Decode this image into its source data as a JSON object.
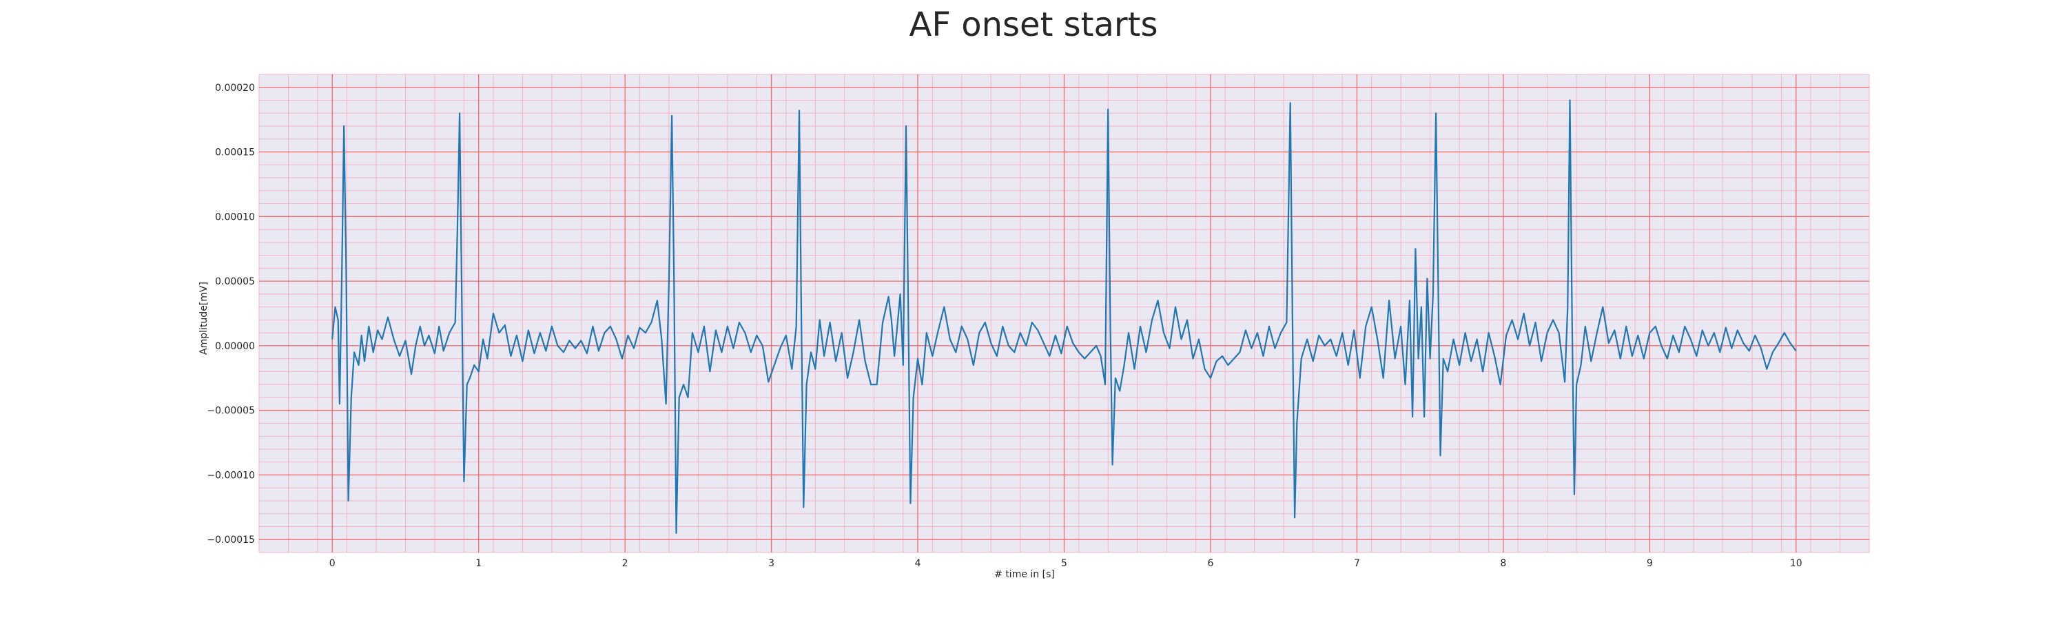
{
  "chart_data": {
    "type": "line",
    "title": "AF onset starts",
    "xlabel": "# time in [s]",
    "ylabel": "Amplitude[mV]",
    "xlim": [
      -0.5,
      10.5
    ],
    "ylim": [
      -0.00016,
      0.00021
    ],
    "x_ticks": [
      0,
      1,
      2,
      3,
      4,
      5,
      6,
      7,
      8,
      9,
      10
    ],
    "x_tick_labels": [
      "0",
      "1",
      "2",
      "3",
      "4",
      "5",
      "6",
      "7",
      "8",
      "9",
      "10"
    ],
    "y_ticks": [
      -0.00015,
      -0.0001,
      -5e-05,
      0,
      5e-05,
      0.0001,
      0.00015,
      0.0002
    ],
    "y_tick_labels": [
      "−0.00015",
      "−0.00010",
      "−0.00005",
      "0.00000",
      "0.00005",
      "0.00010",
      "0.00015",
      "0.00020"
    ],
    "grid": true,
    "minor_grid": true,
    "colors": {
      "line": "#1f77b4",
      "major_grid": "#f26b6b",
      "minor_grid": "#f4b5c4",
      "plot_bg": "#eae8f2"
    },
    "series": [
      {
        "values": [
          [
            0.0,
            5e-06
          ],
          [
            0.02,
            3e-05
          ],
          [
            0.04,
            2e-05
          ],
          [
            0.05,
            -4.5e-05
          ],
          [
            0.065,
            5e-05
          ],
          [
            0.08,
            0.00017
          ],
          [
            0.095,
            6e-05
          ],
          [
            0.11,
            -0.00012
          ],
          [
            0.13,
            -4e-05
          ],
          [
            0.15,
            -5e-06
          ],
          [
            0.18,
            -1.5e-05
          ],
          [
            0.2,
            8e-06
          ],
          [
            0.22,
            -1.2e-05
          ],
          [
            0.25,
            1.5e-05
          ],
          [
            0.28,
            -5e-06
          ],
          [
            0.31,
            1.2e-05
          ],
          [
            0.34,
            5e-06
          ],
          [
            0.38,
            2.2e-05
          ],
          [
            0.42,
            5e-06
          ],
          [
            0.46,
            -8e-06
          ],
          [
            0.5,
            4e-06
          ],
          [
            0.54,
            -2.2e-05
          ],
          [
            0.57,
            0.0
          ],
          [
            0.6,
            1.5e-05
          ],
          [
            0.63,
            0.0
          ],
          [
            0.66,
            8e-06
          ],
          [
            0.7,
            -6e-06
          ],
          [
            0.73,
            1.5e-05
          ],
          [
            0.76,
            -4e-06
          ],
          [
            0.8,
            1e-05
          ],
          [
            0.84,
            1.8e-05
          ],
          [
            0.855,
            9e-05
          ],
          [
            0.87,
            0.00018
          ],
          [
            0.885,
            4e-05
          ],
          [
            0.9,
            -0.000105
          ],
          [
            0.92,
            -3e-05
          ],
          [
            0.94,
            -2.5e-05
          ],
          [
            0.97,
            -1.5e-05
          ],
          [
            1.0,
            -2e-05
          ],
          [
            1.03,
            5e-06
          ],
          [
            1.06,
            -1e-05
          ],
          [
            1.1,
            2.5e-05
          ],
          [
            1.14,
            1e-05
          ],
          [
            1.18,
            1.6e-05
          ],
          [
            1.22,
            -8e-06
          ],
          [
            1.26,
            8e-06
          ],
          [
            1.3,
            -1.2e-05
          ],
          [
            1.34,
            1.2e-05
          ],
          [
            1.38,
            -6e-06
          ],
          [
            1.42,
            1e-05
          ],
          [
            1.46,
            -4e-06
          ],
          [
            1.5,
            1.5e-05
          ],
          [
            1.54,
            0.0
          ],
          [
            1.58,
            -5e-06
          ],
          [
            1.62,
            4e-06
          ],
          [
            1.66,
            -2e-06
          ],
          [
            1.7,
            4e-06
          ],
          [
            1.74,
            -6e-06
          ],
          [
            1.78,
            1.5e-05
          ],
          [
            1.82,
            -4e-06
          ],
          [
            1.86,
            1e-05
          ],
          [
            1.9,
            1.5e-05
          ],
          [
            1.94,
            5e-06
          ],
          [
            1.98,
            -1e-05
          ],
          [
            2.02,
            8e-06
          ],
          [
            2.06,
            -2e-06
          ],
          [
            2.1,
            1.4e-05
          ],
          [
            2.14,
            1e-05
          ],
          [
            2.18,
            1.8e-05
          ],
          [
            2.22,
            3.5e-05
          ],
          [
            2.25,
            5e-06
          ],
          [
            2.28,
            -4.5e-05
          ],
          [
            2.3,
            5e-05
          ],
          [
            2.32,
            0.000178
          ],
          [
            2.335,
            5e-05
          ],
          [
            2.35,
            -0.000145
          ],
          [
            2.37,
            -4e-05
          ],
          [
            2.4,
            -3e-05
          ],
          [
            2.43,
            -4e-05
          ],
          [
            2.46,
            1e-05
          ],
          [
            2.5,
            -5e-06
          ],
          [
            2.54,
            1.5e-05
          ],
          [
            2.58,
            -2e-05
          ],
          [
            2.62,
            1.2e-05
          ],
          [
            2.66,
            -5e-06
          ],
          [
            2.7,
            1.5e-05
          ],
          [
            2.74,
            -2e-06
          ],
          [
            2.78,
            1.8e-05
          ],
          [
            2.82,
            1e-05
          ],
          [
            2.86,
            -5e-06
          ],
          [
            2.9,
            8e-06
          ],
          [
            2.94,
            0.0
          ],
          [
            2.98,
            -2.8e-05
          ],
          [
            3.02,
            -1.5e-05
          ],
          [
            3.06,
            -2e-06
          ],
          [
            3.1,
            8e-06
          ],
          [
            3.14,
            -1.8e-05
          ],
          [
            3.17,
            1.5e-05
          ],
          [
            3.19,
            0.000182
          ],
          [
            3.205,
            2e-05
          ],
          [
            3.22,
            -0.000125
          ],
          [
            3.24,
            -3e-05
          ],
          [
            3.27,
            -5e-06
          ],
          [
            3.3,
            -1.8e-05
          ],
          [
            3.33,
            2e-05
          ],
          [
            3.36,
            -8e-06
          ],
          [
            3.4,
            1.8e-05
          ],
          [
            3.44,
            -1.2e-05
          ],
          [
            3.48,
            1e-05
          ],
          [
            3.52,
            -2.5e-05
          ],
          [
            3.56,
            -5e-06
          ],
          [
            3.6,
            2e-05
          ],
          [
            3.64,
            -1.2e-05
          ],
          [
            3.68,
            -3e-05
          ],
          [
            3.72,
            -3e-05
          ],
          [
            3.76,
            1.8e-05
          ],
          [
            3.8,
            3.8e-05
          ],
          [
            3.82,
            2e-05
          ],
          [
            3.84,
            -8e-06
          ],
          [
            3.86,
            1.5e-05
          ],
          [
            3.88,
            4e-05
          ],
          [
            3.9,
            -1.5e-05
          ],
          [
            3.92,
            0.00017
          ],
          [
            3.935,
            3e-05
          ],
          [
            3.95,
            -0.000122
          ],
          [
            3.97,
            -4e-05
          ],
          [
            4.0,
            -1e-05
          ],
          [
            4.03,
            -3e-05
          ],
          [
            4.06,
            1e-05
          ],
          [
            4.1,
            -8e-06
          ],
          [
            4.14,
            1.2e-05
          ],
          [
            4.18,
            3e-05
          ],
          [
            4.22,
            5e-06
          ],
          [
            4.26,
            -5e-06
          ],
          [
            4.3,
            1.5e-05
          ],
          [
            4.34,
            5e-06
          ],
          [
            4.38,
            -1.5e-05
          ],
          [
            4.42,
            1e-05
          ],
          [
            4.46,
            1.8e-05
          ],
          [
            4.5,
            2e-06
          ],
          [
            4.54,
            -8e-06
          ],
          [
            4.58,
            1.5e-05
          ],
          [
            4.62,
            0.0
          ],
          [
            4.66,
            -5e-06
          ],
          [
            4.7,
            1e-05
          ],
          [
            4.74,
            0.0
          ],
          [
            4.78,
            1.8e-05
          ],
          [
            4.82,
            1.2e-05
          ],
          [
            4.86,
            2e-06
          ],
          [
            4.9,
            -8e-06
          ],
          [
            4.94,
            8e-06
          ],
          [
            4.98,
            -6e-06
          ],
          [
            5.02,
            1.5e-05
          ],
          [
            5.06,
            2e-06
          ],
          [
            5.1,
            -5e-06
          ],
          [
            5.14,
            -1e-05
          ],
          [
            5.18,
            -5e-06
          ],
          [
            5.22,
            0.0
          ],
          [
            5.25,
            -8e-06
          ],
          [
            5.28,
            -3e-05
          ],
          [
            5.3,
            0.000183
          ],
          [
            5.315,
            2e-05
          ],
          [
            5.33,
            -9.2e-05
          ],
          [
            5.35,
            -2.5e-05
          ],
          [
            5.38,
            -3.5e-05
          ],
          [
            5.41,
            -1.5e-05
          ],
          [
            5.44,
            1e-05
          ],
          [
            5.48,
            -1.8e-05
          ],
          [
            5.52,
            1.5e-05
          ],
          [
            5.56,
            -5e-06
          ],
          [
            5.6,
            2e-05
          ],
          [
            5.64,
            3.5e-05
          ],
          [
            5.68,
            1e-05
          ],
          [
            5.72,
            -2e-06
          ],
          [
            5.76,
            3e-05
          ],
          [
            5.8,
            5e-06
          ],
          [
            5.84,
            2e-05
          ],
          [
            5.88,
            -1e-05
          ],
          [
            5.92,
            5e-06
          ],
          [
            5.96,
            -1.8e-05
          ],
          [
            6.0,
            -2.5e-05
          ],
          [
            6.04,
            -1.2e-05
          ],
          [
            6.08,
            -8e-06
          ],
          [
            6.12,
            -1.5e-05
          ],
          [
            6.16,
            -1e-05
          ],
          [
            6.2,
            -5e-06
          ],
          [
            6.24,
            1.2e-05
          ],
          [
            6.28,
            -2e-06
          ],
          [
            6.32,
            1e-05
          ],
          [
            6.36,
            -8e-06
          ],
          [
            6.4,
            1.5e-05
          ],
          [
            6.44,
            -2e-06
          ],
          [
            6.48,
            1e-05
          ],
          [
            6.52,
            1.8e-05
          ],
          [
            6.545,
            0.000188
          ],
          [
            6.56,
            2e-05
          ],
          [
            6.575,
            -0.000133
          ],
          [
            6.59,
            -6e-05
          ],
          [
            6.62,
            -1e-05
          ],
          [
            6.66,
            5e-06
          ],
          [
            6.7,
            -1.2e-05
          ],
          [
            6.74,
            8e-06
          ],
          [
            6.78,
            0.0
          ],
          [
            6.82,
            5e-06
          ],
          [
            6.86,
            -8e-06
          ],
          [
            6.9,
            1e-05
          ],
          [
            6.94,
            -1.5e-05
          ],
          [
            6.98,
            1.2e-05
          ],
          [
            7.02,
            -2.5e-05
          ],
          [
            7.06,
            1.5e-05
          ],
          [
            7.1,
            3e-05
          ],
          [
            7.14,
            5e-06
          ],
          [
            7.18,
            -2.5e-05
          ],
          [
            7.22,
            3.5e-05
          ],
          [
            7.26,
            -1e-05
          ],
          [
            7.3,
            1.5e-05
          ],
          [
            7.33,
            -3e-05
          ],
          [
            7.36,
            3.5e-05
          ],
          [
            7.38,
            -5.5e-05
          ],
          [
            7.4,
            7.5e-05
          ],
          [
            7.42,
            -1e-05
          ],
          [
            7.44,
            3e-05
          ],
          [
            7.46,
            -5.5e-05
          ],
          [
            7.48,
            5.2e-05
          ],
          [
            7.5,
            -1e-05
          ],
          [
            7.52,
            4e-05
          ],
          [
            7.54,
            0.00018
          ],
          [
            7.555,
            5e-05
          ],
          [
            7.57,
            -8.5e-05
          ],
          [
            7.59,
            -1e-05
          ],
          [
            7.62,
            -2e-05
          ],
          [
            7.66,
            5e-06
          ],
          [
            7.7,
            -1.5e-05
          ],
          [
            7.74,
            1e-05
          ],
          [
            7.78,
            -1.2e-05
          ],
          [
            7.82,
            5e-06
          ],
          [
            7.86,
            -2e-05
          ],
          [
            7.9,
            1e-05
          ],
          [
            7.94,
            -8e-06
          ],
          [
            7.98,
            -3e-05
          ],
          [
            8.02,
            8e-06
          ],
          [
            8.06,
            2e-05
          ],
          [
            8.1,
            5e-06
          ],
          [
            8.14,
            2.5e-05
          ],
          [
            8.18,
            0.0
          ],
          [
            8.22,
            1.8e-05
          ],
          [
            8.26,
            -1.2e-05
          ],
          [
            8.3,
            1e-05
          ],
          [
            8.34,
            2e-05
          ],
          [
            8.38,
            1e-05
          ],
          [
            8.42,
            -2.8e-05
          ],
          [
            8.44,
            3e-05
          ],
          [
            8.455,
            0.00019
          ],
          [
            8.47,
            2e-05
          ],
          [
            8.485,
            -0.000115
          ],
          [
            8.5,
            -3e-05
          ],
          [
            8.53,
            -1.5e-05
          ],
          [
            8.56,
            1.5e-05
          ],
          [
            8.6,
            -1.2e-05
          ],
          [
            8.64,
            1e-05
          ],
          [
            8.68,
            3e-05
          ],
          [
            8.72,
            2e-06
          ],
          [
            8.76,
            1.2e-05
          ],
          [
            8.8,
            -1e-05
          ],
          [
            8.84,
            1.5e-05
          ],
          [
            8.88,
            -8e-06
          ],
          [
            8.92,
            8e-06
          ],
          [
            8.96,
            -1e-05
          ],
          [
            9.0,
            1e-05
          ],
          [
            9.04,
            1.5e-05
          ],
          [
            9.08,
            0.0
          ],
          [
            9.12,
            -1e-05
          ],
          [
            9.16,
            8e-06
          ],
          [
            9.2,
            -5e-06
          ],
          [
            9.24,
            1.5e-05
          ],
          [
            9.28,
            5e-06
          ],
          [
            9.32,
            -8e-06
          ],
          [
            9.36,
            1.2e-05
          ],
          [
            9.4,
            0.0
          ],
          [
            9.44,
            1e-05
          ],
          [
            9.48,
            -5e-06
          ],
          [
            9.52,
            1.4e-05
          ],
          [
            9.56,
            -2e-06
          ],
          [
            9.6,
            1.2e-05
          ],
          [
            9.64,
            2e-06
          ],
          [
            9.68,
            -4e-06
          ],
          [
            9.72,
            8e-06
          ],
          [
            9.76,
            -2e-06
          ],
          [
            9.8,
            -1.8e-05
          ],
          [
            9.84,
            -5e-06
          ],
          [
            9.88,
            2e-06
          ],
          [
            9.92,
            1e-05
          ],
          [
            9.96,
            2e-06
          ],
          [
            10.0,
            -4e-06
          ]
        ]
      }
    ]
  }
}
